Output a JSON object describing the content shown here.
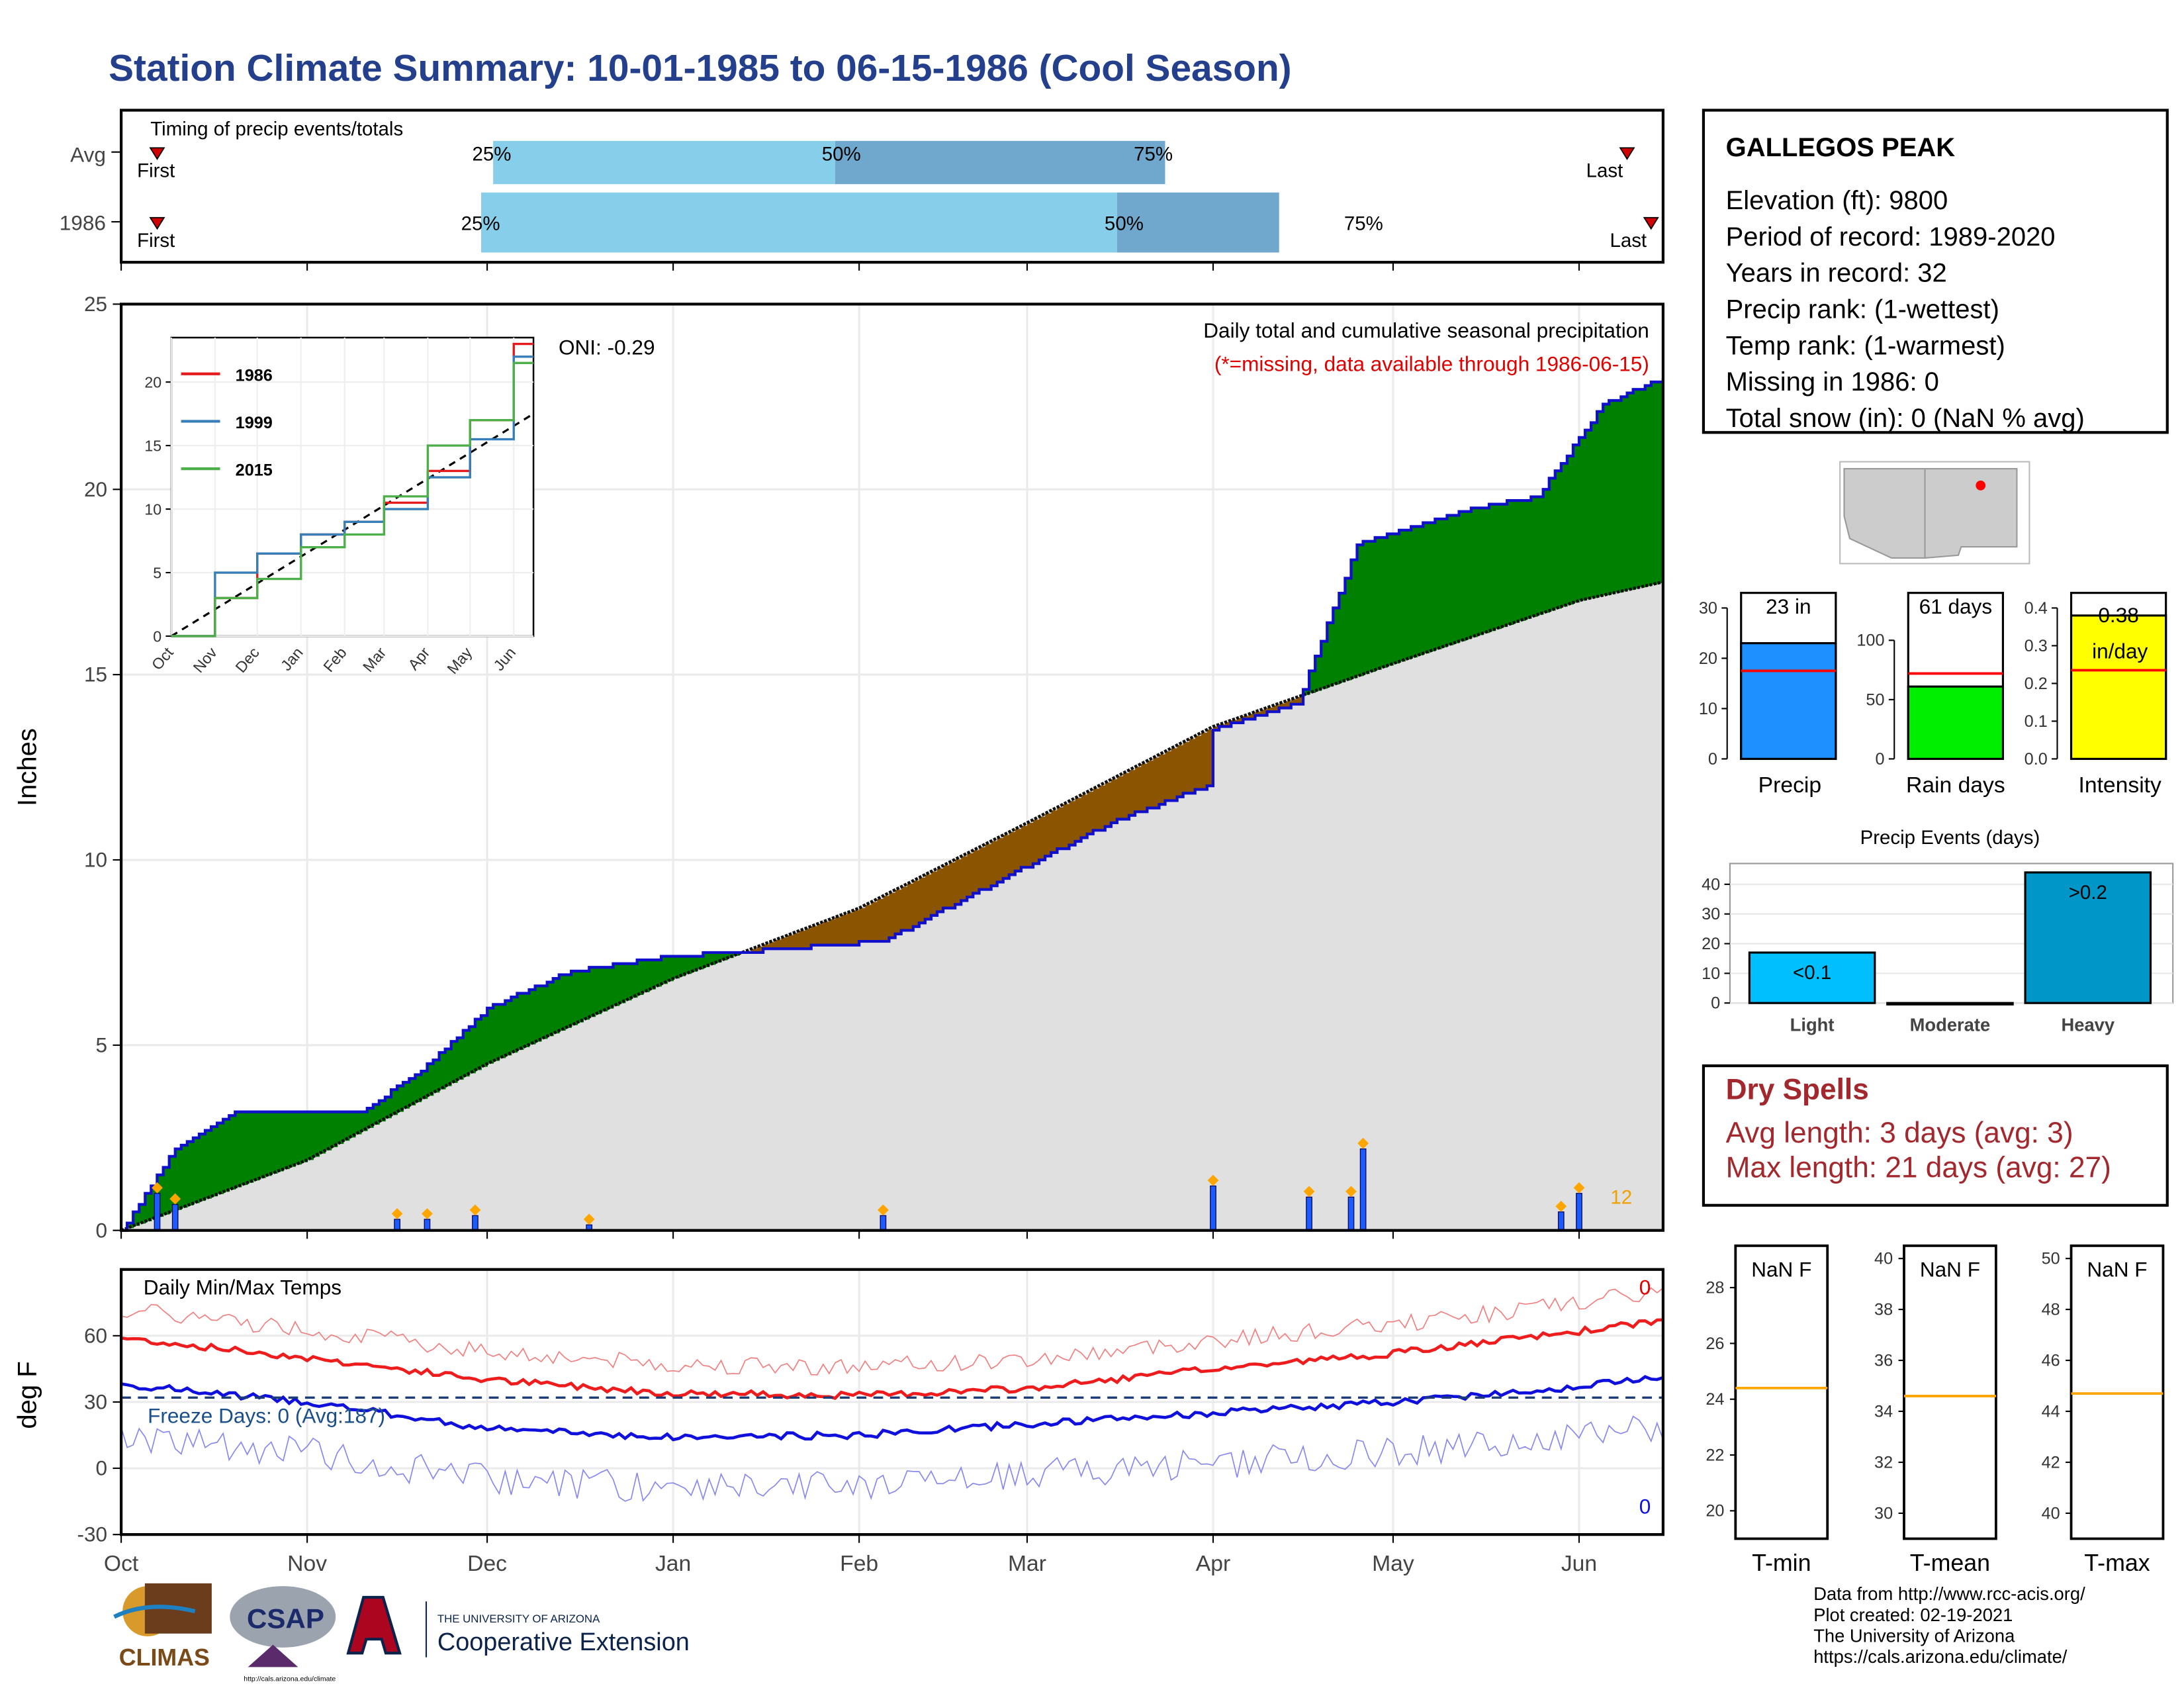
{
  "title": "Station Climate Summary: 10-01-1985 to 06-15-1986 (Cool Season)",
  "colors": {
    "title": "#243f8c",
    "above": "#008000",
    "below": "#8b5400",
    "cum_line": "#1010cc",
    "normal_fill": "#e0e0e0",
    "tmax": "#ee1c1c",
    "tmin": "#1010dd",
    "dry": "#a3282e"
  },
  "timing_panel": {
    "label": "Timing of precip events/totals",
    "rows": [
      {
        "name": "Avg",
        "first": "First",
        "last": "Last",
        "p25": "25%",
        "p50": "50%",
        "p75": "75%"
      },
      {
        "name": "1986",
        "first": "First",
        "last": "Last",
        "p25": "25%",
        "p50": "50%",
        "p75": "75%"
      }
    ]
  },
  "precip_panel": {
    "caption": "Daily total and cumulative seasonal precipitation",
    "missing_note": "(*=missing, data available through 1986-06-15)",
    "oni": "ONI: -0.29",
    "ylabel": "Inches",
    "ytick_labels": [
      "0",
      "5",
      "10",
      "15",
      "20",
      "25"
    ],
    "xtick_labels": [
      "Oct",
      "Nov",
      "Dec",
      "Jan",
      "Feb",
      "Mar",
      "Apr",
      "May",
      "Jun"
    ],
    "count_label": "12"
  },
  "inset": {
    "legend": [
      "1986",
      "1999",
      "2015"
    ],
    "ytick_labels": [
      "0",
      "5",
      "10",
      "15",
      "20"
    ],
    "xtick_labels": [
      "Oct",
      "Nov",
      "Dec",
      "Jan",
      "Feb",
      "Mar",
      "Apr",
      "May",
      "Jun"
    ]
  },
  "temp_panel": {
    "label": "Daily Min/Max Temps",
    "freeze": "Freeze Days: 0 (Avg:187)",
    "ylabel": "deg F",
    "ytick_labels": [
      "-30",
      "0",
      "30",
      "60"
    ],
    "max_count": "0",
    "min_count": "0"
  },
  "info": {
    "station": "GALLEGOS PEAK",
    "lines": [
      "Elevation (ft): 9800",
      "Period of record: 1989-2020",
      "Years in record: 32",
      "Precip rank:  (1-wettest)",
      "Temp rank:  (1-warmest)",
      "Missing in 1986: 0",
      "Total snow (in): 0 (NaN % avg)"
    ]
  },
  "mini_bars": [
    {
      "label": "Precip",
      "value_label": "23 in",
      "ytick_labels": [
        "0",
        "10",
        "20",
        "30"
      ],
      "color": "#1e90ff"
    },
    {
      "label": "Rain days",
      "value_label": "61 days",
      "ytick_labels": [
        "0",
        "50",
        "100"
      ],
      "color": "#00ee00"
    },
    {
      "label": "Intensity",
      "value_label": "0.38",
      "unit": "in/day",
      "ytick_labels": [
        "0.0",
        "0.1",
        "0.2",
        "0.3",
        "0.4"
      ],
      "color": "#ffff00"
    }
  ],
  "events_chart": {
    "title": "Precip Events (days)",
    "categories": [
      "Light",
      "Moderate",
      "Heavy"
    ],
    "bar_labels": [
      "<0.1",
      "",
      ">0.2"
    ],
    "ytick_labels": [
      "0",
      "10",
      "20",
      "30",
      "40"
    ]
  },
  "dry_spells": {
    "title": "Dry Spells",
    "avg": "Avg length: 3 days (avg: 3)",
    "max": "Max length: 21 days (avg: 27)"
  },
  "temp_boxes": [
    {
      "label": "T-min",
      "value": "NaN F",
      "ytick_labels": [
        "20",
        "22",
        "24",
        "26",
        "28"
      ]
    },
    {
      "label": "T-mean",
      "value": "NaN F",
      "ytick_labels": [
        "30",
        "32",
        "34",
        "36",
        "38",
        "40"
      ]
    },
    {
      "label": "T-max",
      "value": "NaN F",
      "ytick_labels": [
        "40",
        "42",
        "44",
        "46",
        "48",
        "50"
      ]
    }
  ],
  "footer": [
    "Data from http://www.rcc-acis.org/",
    "Plot created: 02-19-2021",
    "The University of Arizona",
    "https://cals.arizona.edu/climate/"
  ],
  "logos": {
    "climas": "CLIMAS",
    "csap": "CSAP",
    "csap_url": "http://cals.arizona.edu/climate",
    "ua_top": "THE UNIVERSITY OF ARIZONA",
    "ua_bottom": "Cooperative Extension"
  },
  "chart_data": [
    {
      "type": "bar",
      "title": "Timing of precip events/totals",
      "categories": [
        "Avg",
        "1986"
      ],
      "series": [
        {
          "name": "25%",
          "values": [
            "1985-12-02",
            "1985-11-30"
          ]
        },
        {
          "name": "50%",
          "values": [
            "1986-01-28",
            "1986-03-16"
          ]
        },
        {
          "name": "75%",
          "values": [
            "1986-03-24",
            "1986-04-12"
          ]
        },
        {
          "name": "First",
          "values": [
            "1985-10-07",
            "1985-10-07"
          ]
        },
        {
          "name": "Last",
          "values": [
            "1986-06-09",
            "1986-06-13"
          ]
        }
      ]
    },
    {
      "type": "area",
      "title": "Daily total and cumulative seasonal precipitation",
      "xlabel": "",
      "ylabel": "Inches",
      "ylim": [
        0,
        25
      ],
      "x_range": [
        "1985-10-01",
        "1986-06-15"
      ],
      "series": [
        {
          "name": "1986 cumulative",
          "x": [
            "1985-10-01",
            "1985-10-10",
            "1985-10-20",
            "1985-11-10",
            "1985-11-20",
            "1985-12-01",
            "1985-12-15",
            "1986-01-01",
            "1986-01-20",
            "1986-02-05",
            "1986-02-25",
            "1986-03-15",
            "1986-03-31",
            "1986-04-01",
            "1986-04-15",
            "1986-04-25",
            "1986-05-15",
            "1986-05-25",
            "1986-06-05",
            "1986-06-15"
          ],
          "values": [
            0,
            2.2,
            3.2,
            3.2,
            4.3,
            6.0,
            7.0,
            7.4,
            7.6,
            7.8,
            9.5,
            11.0,
            12.0,
            13.5,
            14.2,
            18.5,
            19.5,
            19.8,
            22.3,
            23.0
          ]
        },
        {
          "name": "Average cumulative",
          "x": [
            "1985-10-01",
            "1985-11-01",
            "1985-12-01",
            "1986-01-01",
            "1986-02-01",
            "1986-03-01",
            "1986-04-01",
            "1986-05-01",
            "1986-06-01",
            "1986-06-15"
          ],
          "values": [
            0,
            1.9,
            4.5,
            6.8,
            8.7,
            11.0,
            13.6,
            15.3,
            17.0,
            17.5
          ]
        },
        {
          "name": "Daily precip",
          "x": [
            "1985-10-07",
            "1985-10-10",
            "1985-11-16",
            "1985-11-21",
            "1985-11-29",
            "1985-12-18",
            "1986-02-05",
            "1986-04-01",
            "1986-04-17",
            "1986-04-24",
            "1986-04-26",
            "1986-05-29",
            "1986-06-01"
          ],
          "values": [
            1.0,
            0.7,
            0.3,
            0.3,
            0.4,
            0.15,
            0.4,
            1.2,
            0.9,
            0.9,
            2.2,
            0.5,
            1.0
          ]
        }
      ]
    },
    {
      "type": "line",
      "title": "",
      "xlabel": "",
      "ylabel": "",
      "ylim": [
        0,
        23
      ],
      "x_range": [
        "Oct",
        "Jun"
      ],
      "series": [
        {
          "name": "1986",
          "x": [
            "Oct",
            "Nov",
            "Dec",
            "Jan",
            "Feb",
            "Mar",
            "Apr",
            "May",
            "Jun"
          ],
          "values": [
            0,
            3,
            6.5,
            8,
            9,
            10.5,
            13,
            17,
            23
          ]
        },
        {
          "name": "1999",
          "x": [
            "Oct",
            "Nov",
            "Dec",
            "Jan",
            "Feb",
            "Mar",
            "Apr",
            "May",
            "Jun"
          ],
          "values": [
            0,
            5,
            6.5,
            8,
            9,
            10,
            12.5,
            15.5,
            22
          ]
        },
        {
          "name": "2015",
          "x": [
            "Oct",
            "Nov",
            "Dec",
            "Jan",
            "Feb",
            "Mar",
            "Apr",
            "May",
            "Jun"
          ],
          "values": [
            0,
            3,
            4.5,
            7,
            8,
            11,
            15,
            17,
            21.5
          ]
        }
      ]
    },
    {
      "type": "line",
      "title": "Daily Min/Max Temps",
      "xlabel": "",
      "ylabel": "deg F",
      "ylim": [
        -30,
        90
      ],
      "x_range": [
        "1985-10-01",
        "1986-06-15"
      ],
      "freeze_line": 32,
      "series": [
        {
          "name": "Avg max",
          "x": [
            "Oct",
            "Nov",
            "Dec",
            "Jan",
            "Feb",
            "Mar",
            "Apr",
            "May",
            "Jun",
            "Jun15"
          ],
          "values": [
            59,
            50,
            40,
            34,
            33,
            36,
            45,
            52,
            62,
            67
          ]
        },
        {
          "name": "Avg min",
          "x": [
            "Oct",
            "Nov",
            "Dec",
            "Jan",
            "Feb",
            "Mar",
            "Apr",
            "May",
            "Jun",
            "Jun15"
          ],
          "values": [
            38,
            30,
            18,
            14,
            15,
            20,
            25,
            30,
            37,
            42
          ]
        }
      ]
    },
    {
      "type": "bar",
      "title": "Precip",
      "categories": [
        "Precip"
      ],
      "values": [
        23
      ],
      "ylim": [
        0,
        33
      ],
      "avg": 17.5
    },
    {
      "type": "bar",
      "title": "Rain days",
      "categories": [
        "Rain days"
      ],
      "values": [
        61
      ],
      "ylim": [
        0,
        140
      ],
      "avg": 72
    },
    {
      "type": "bar",
      "title": "Intensity",
      "categories": [
        "Intensity"
      ],
      "values": [
        0.38
      ],
      "ylim": [
        0,
        0.44
      ],
      "avg": 0.235
    },
    {
      "type": "bar",
      "title": "Precip Events (days)",
      "categories": [
        "Light",
        "Moderate",
        "Heavy"
      ],
      "values": [
        17,
        0,
        44
      ],
      "ylim": [
        0,
        47
      ]
    }
  ]
}
